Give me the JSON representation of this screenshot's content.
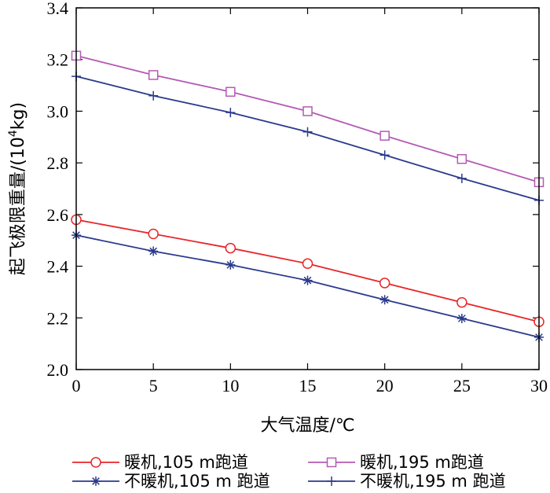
{
  "chart_data": {
    "type": "line",
    "xlabel": "大气温度/℃",
    "ylabel_parts": [
      "起飞极限重量/(10",
      "4",
      "kg)"
    ],
    "xlim": [
      0,
      30
    ],
    "ylim": [
      2.0,
      3.4
    ],
    "xticks": [
      0,
      5,
      10,
      15,
      20,
      25,
      30
    ],
    "xtick_labels": [
      "0",
      "5",
      "10",
      "15",
      "20",
      "25",
      "30"
    ],
    "yticks": [
      2.0,
      2.2,
      2.4,
      2.6,
      2.8,
      3.0,
      3.2,
      3.4
    ],
    "ytick_labels": [
      "2.0",
      "2.2",
      "2.4",
      "2.6",
      "2.8",
      "3.0",
      "3.2",
      "3.4"
    ],
    "grid": false,
    "legend_position": "bottom",
    "x": [
      0,
      5,
      10,
      15,
      20,
      25,
      30
    ],
    "series": [
      {
        "name": "暖机,105 m跑道",
        "color": "#e8262a",
        "marker": "circle",
        "values": [
          2.58,
          2.525,
          2.47,
          2.41,
          2.335,
          2.26,
          2.185
        ]
      },
      {
        "name": "暖机,195 m跑道",
        "color": "#b45ab4",
        "marker": "square",
        "values": [
          3.215,
          3.14,
          3.075,
          3.0,
          2.905,
          2.815,
          2.725
        ]
      },
      {
        "name": "不暖机,105 m 跑道",
        "color": "#2b3a8c",
        "marker": "asterisk",
        "values": [
          2.52,
          2.458,
          2.405,
          2.345,
          2.27,
          2.198,
          2.125
        ]
      },
      {
        "name": "不暖机,195 m 跑道",
        "color": "#2b3a8c",
        "marker": "plus",
        "values": [
          3.135,
          3.06,
          2.995,
          2.92,
          2.83,
          2.74,
          2.655
        ]
      }
    ]
  }
}
